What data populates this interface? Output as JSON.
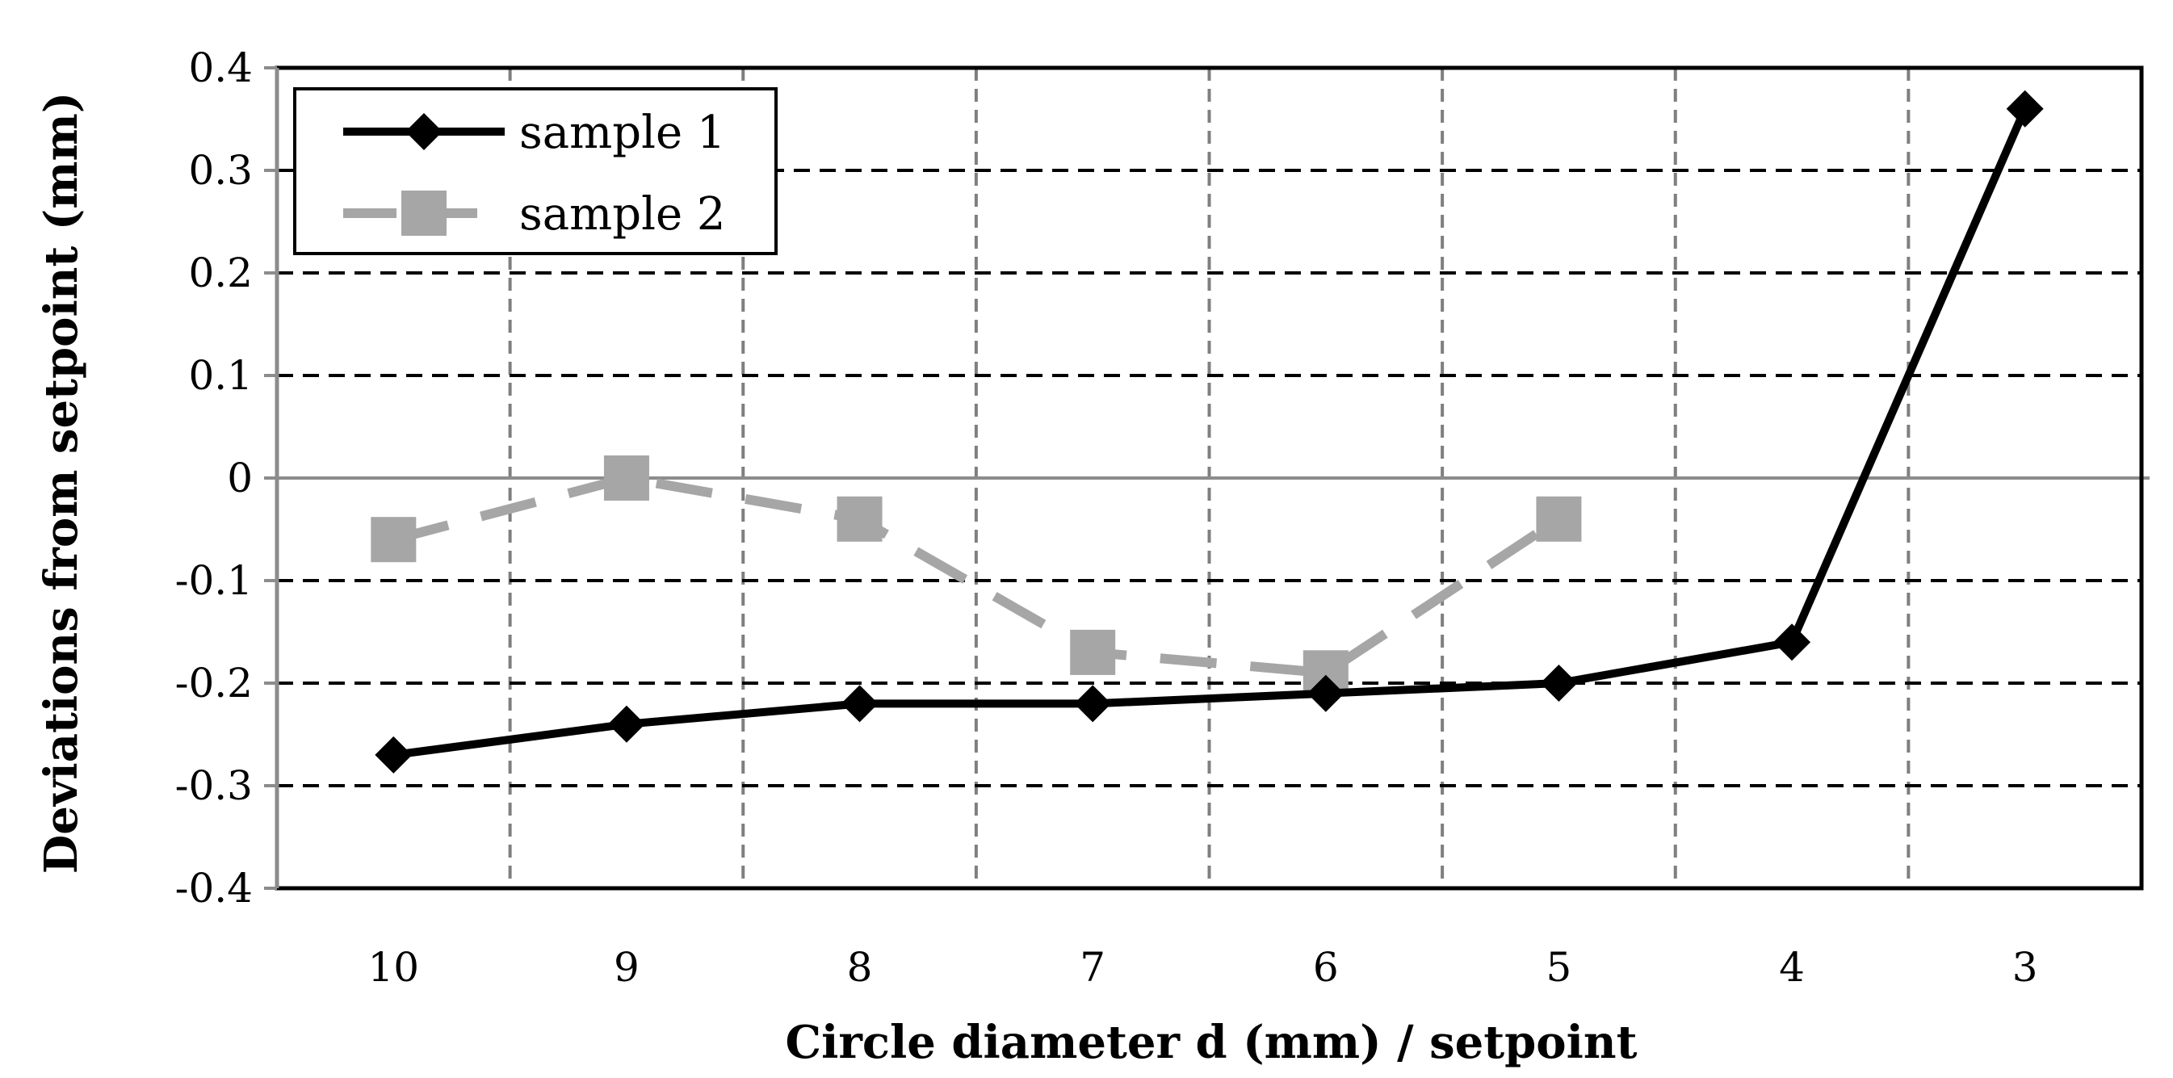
{
  "chart_data": {
    "type": "line",
    "title": "",
    "xlabel": "Circle diameter d (mm) / setpoint",
    "ylabel": "Deviations from setpoint (mm)",
    "categories": [
      "10",
      "9",
      "8",
      "7",
      "6",
      "5",
      "4",
      "3"
    ],
    "ylim": [
      -0.4,
      0.4
    ],
    "yticks": [
      0.4,
      0.3,
      0.2,
      0.1,
      0,
      -0.1,
      -0.2,
      -0.3,
      -0.4
    ],
    "ytick_labels": [
      "0.4",
      "0.3",
      "0.2",
      "0.1",
      "0",
      "-0.1",
      "-0.2",
      "-0.3",
      "-0.4"
    ],
    "grid": true,
    "legend_position": "top-left",
    "series": [
      {
        "name": "sample 1",
        "values": [
          -0.27,
          -0.24,
          -0.22,
          -0.22,
          -0.21,
          -0.2,
          -0.16,
          0.36
        ],
        "color": "#000000",
        "line_style": "solid",
        "marker": "diamond"
      },
      {
        "name": "sample 2",
        "values": [
          -0.06,
          0.0,
          -0.04,
          -0.17,
          -0.19,
          -0.04,
          null,
          null
        ],
        "color": "#a6a6a6",
        "line_style": "dashed",
        "marker": "square"
      }
    ]
  }
}
